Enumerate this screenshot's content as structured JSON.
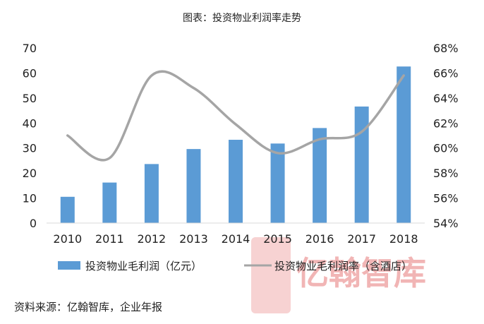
{
  "chart_data": {
    "type": "bar",
    "title": "图表：投资物业利润率走势",
    "categories": [
      "2010",
      "2011",
      "2012",
      "2013",
      "2014",
      "2015",
      "2016",
      "2017",
      "2018"
    ],
    "series": [
      {
        "name": "投资物业毛利润（亿元）",
        "type": "bar",
        "axis": "left",
        "values": [
          10.5,
          16.2,
          23.6,
          29.6,
          33.3,
          31.8,
          38.0,
          46.6,
          62.6
        ]
      },
      {
        "name": "投资物业毛利润率（含酒店）",
        "type": "line",
        "axis": "right",
        "values": [
          61.0,
          59.2,
          65.8,
          64.8,
          61.9,
          59.6,
          60.7,
          61.3,
          65.8
        ]
      }
    ],
    "y_left": {
      "min": 0,
      "max": 70,
      "ticks": [
        0,
        10,
        20,
        30,
        40,
        50,
        60,
        70
      ],
      "tick_labels": [
        "0",
        "10",
        "20",
        "30",
        "40",
        "50",
        "60",
        "70"
      ]
    },
    "y_right": {
      "min": 54,
      "max": 68,
      "ticks": [
        54,
        56,
        58,
        60,
        62,
        64,
        66,
        68
      ],
      "tick_labels": [
        "54%",
        "56%",
        "58%",
        "60%",
        "62%",
        "64%",
        "66%",
        "68%"
      ]
    },
    "grid": false,
    "legend_position": "bottom",
    "colors": {
      "bar": "#5b9bd5",
      "line": "#a5a5a5",
      "axis": "#d9d9d9",
      "watermark": "#e25d5d"
    }
  },
  "source": "资料来源：亿翰智库，企业年报",
  "watermark": "亿翰智库"
}
